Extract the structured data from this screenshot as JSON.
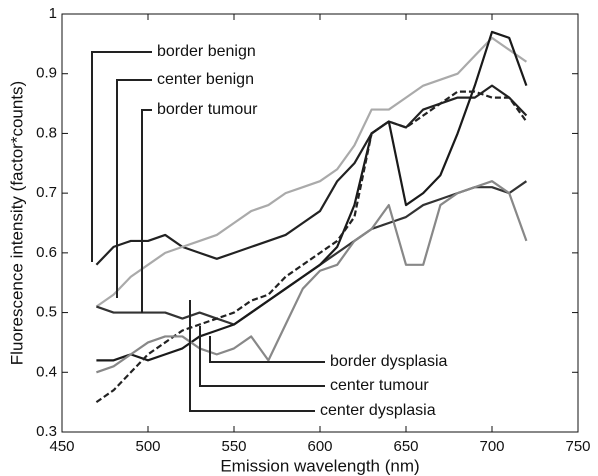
{
  "chart_data": {
    "type": "line",
    "xlabel": "Emission wavelength (nm)",
    "ylabel": "Fluorescence intensity (factor*counts)",
    "x": [
      470,
      480,
      490,
      500,
      510,
      520,
      530,
      540,
      550,
      560,
      570,
      580,
      590,
      600,
      610,
      620,
      630,
      640,
      650,
      660,
      670,
      680,
      690,
      700,
      710,
      720
    ],
    "series": [
      {
        "name": "border benign",
        "color": "#222222",
        "dash": false,
        "values": [
          0.58,
          0.61,
          0.62,
          0.62,
          0.63,
          0.61,
          0.6,
          0.59,
          0.6,
          0.61,
          0.62,
          0.63,
          0.65,
          0.67,
          0.72,
          0.75,
          0.8,
          0.82,
          0.81,
          0.84,
          0.85,
          0.86,
          0.86,
          0.88,
          0.86,
          0.83
        ]
      },
      {
        "name": "center benign",
        "color": "#aaaaaa",
        "dash": false,
        "values": [
          0.51,
          0.53,
          0.56,
          0.58,
          0.6,
          0.61,
          0.62,
          0.63,
          0.65,
          0.67,
          0.68,
          0.7,
          0.71,
          0.72,
          0.74,
          0.78,
          0.84,
          0.84,
          0.86,
          0.88,
          0.89,
          0.9,
          0.93,
          0.96,
          0.94,
          0.92
        ]
      },
      {
        "name": "border tumour",
        "color": "#333333",
        "dash": false,
        "values": [
          0.51,
          0.5,
          0.5,
          0.5,
          0.5,
          0.49,
          0.5,
          0.49,
          0.48,
          0.5,
          0.52,
          0.54,
          0.56,
          0.58,
          0.6,
          0.62,
          0.64,
          0.65,
          0.66,
          0.68,
          0.69,
          0.7,
          0.71,
          0.71,
          0.7,
          0.72
        ]
      },
      {
        "name": "border dysplasia",
        "color": "#1a1a1a",
        "dash": false,
        "values": [
          0.42,
          0.42,
          0.43,
          0.42,
          0.43,
          0.44,
          0.46,
          0.47,
          0.48,
          0.5,
          0.52,
          0.54,
          0.56,
          0.58,
          0.61,
          0.68,
          0.8,
          0.82,
          0.68,
          0.7,
          0.73,
          0.8,
          0.88,
          0.97,
          0.96,
          0.88
        ]
      },
      {
        "name": "center tumour",
        "color": "#222222",
        "dash": true,
        "values": [
          0.35,
          0.37,
          0.4,
          0.43,
          0.45,
          0.47,
          0.48,
          0.49,
          0.5,
          0.52,
          0.53,
          0.56,
          0.58,
          0.6,
          0.62,
          0.66,
          0.8,
          0.82,
          0.81,
          0.83,
          0.85,
          0.87,
          0.87,
          0.86,
          0.86,
          0.82
        ]
      },
      {
        "name": "center dysplasia",
        "color": "#888888",
        "dash": false,
        "values": [
          0.4,
          0.41,
          0.43,
          0.45,
          0.46,
          0.46,
          0.44,
          0.43,
          0.44,
          0.46,
          0.42,
          0.48,
          0.54,
          0.57,
          0.58,
          0.62,
          0.64,
          0.68,
          0.58,
          0.58,
          0.68,
          0.7,
          0.71,
          0.72,
          0.7,
          0.62
        ]
      }
    ],
    "xlim": [
      450,
      750
    ],
    "xticks": [
      450,
      500,
      550,
      600,
      650,
      700,
      750
    ],
    "ylim": [
      0.3,
      1
    ],
    "yticks": [
      0.3,
      0.4,
      0.5,
      0.6,
      0.7,
      0.8,
      0.9,
      1
    ],
    "grid": false
  }
}
